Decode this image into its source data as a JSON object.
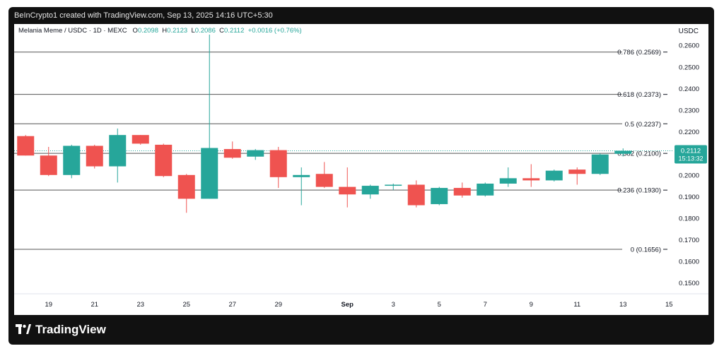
{
  "header": {
    "caption": "BeInCrypto1 created with TradingView.com, Sep 13, 2025 14:16 UTC+5:30"
  },
  "legend": {
    "symbol": "Melania Meme / USDC · 1D · MEXC",
    "open_label": "O",
    "open": "0.2098",
    "high_label": "H",
    "high": "0.2123",
    "low_label": "L",
    "low": "0.2086",
    "close_label": "C",
    "close": "0.2112",
    "change": "+0.0016 (+0.76%)"
  },
  "currency": "USDC",
  "brand": "TradingView",
  "price_tag": {
    "price": "0.2112",
    "countdown": "15:13:32"
  },
  "colors": {
    "up": "#26a69a",
    "down": "#ef5350",
    "line": "#555555",
    "background": "#ffffff",
    "frame": "#111111"
  },
  "chart_data": {
    "type": "candlestick",
    "ylim": [
      0.145,
      0.264
    ],
    "y_ticks": [
      "0.2600",
      "0.2500",
      "0.2400",
      "0.2300",
      "0.2200",
      "0.2100",
      "0.2000",
      "0.1900",
      "0.1800",
      "0.1700",
      "0.1600",
      "0.1500"
    ],
    "x_ticks": [
      {
        "day": 19,
        "label": "19"
      },
      {
        "day": 21,
        "label": "21"
      },
      {
        "day": 23,
        "label": "23"
      },
      {
        "day": 25,
        "label": "25"
      },
      {
        "day": 27,
        "label": "27"
      },
      {
        "day": 29,
        "label": "29"
      },
      {
        "day": 32,
        "label": "Sep"
      },
      {
        "day": 34,
        "label": "3"
      },
      {
        "day": 36,
        "label": "5"
      },
      {
        "day": 38,
        "label": "7"
      },
      {
        "day": 40,
        "label": "9"
      },
      {
        "day": 42,
        "label": "11"
      },
      {
        "day": 44,
        "label": "13"
      },
      {
        "day": 46,
        "label": "15"
      }
    ],
    "fib_levels": [
      {
        "label": "0.786 (0.2569)",
        "value": 0.2569
      },
      {
        "label": "0.618 (0.2373)",
        "value": 0.2373
      },
      {
        "label": "0.5 (0.2237)",
        "value": 0.2237
      },
      {
        "label": "0.382 (0.2100)",
        "value": 0.21
      },
      {
        "label": "0.236 (0.1930)",
        "value": 0.193
      },
      {
        "label": "0 (0.1656)",
        "value": 0.1656
      }
    ],
    "current_price": 0.2112,
    "candles": [
      {
        "d": 18,
        "o": 0.218,
        "h": 0.2185,
        "l": 0.209,
        "c": 0.209
      },
      {
        "d": 19,
        "o": 0.209,
        "h": 0.213,
        "l": 0.1995,
        "c": 0.2
      },
      {
        "d": 20,
        "o": 0.2,
        "h": 0.214,
        "l": 0.1985,
        "c": 0.2135
      },
      {
        "d": 21,
        "o": 0.2135,
        "h": 0.214,
        "l": 0.203,
        "c": 0.204
      },
      {
        "d": 22,
        "o": 0.204,
        "h": 0.2215,
        "l": 0.1965,
        "c": 0.2185
      },
      {
        "d": 23,
        "o": 0.2185,
        "h": 0.2185,
        "l": 0.214,
        "c": 0.2145
      },
      {
        "d": 24,
        "o": 0.214,
        "h": 0.2145,
        "l": 0.199,
        "c": 0.1995
      },
      {
        "d": 25,
        "o": 0.2,
        "h": 0.2005,
        "l": 0.1825,
        "c": 0.189
      },
      {
        "d": 26,
        "o": 0.189,
        "h": 0.265,
        "l": 0.189,
        "c": 0.2125
      },
      {
        "d": 27,
        "o": 0.212,
        "h": 0.2155,
        "l": 0.2075,
        "c": 0.208
      },
      {
        "d": 28,
        "o": 0.2085,
        "h": 0.212,
        "l": 0.207,
        "c": 0.2115
      },
      {
        "d": 29,
        "o": 0.2115,
        "h": 0.213,
        "l": 0.194,
        "c": 0.199
      },
      {
        "d": 30,
        "o": 0.199,
        "h": 0.2035,
        "l": 0.186,
        "c": 0.2
      },
      {
        "d": 31,
        "o": 0.2005,
        "h": 0.206,
        "l": 0.194,
        "c": 0.1945
      },
      {
        "d": 32,
        "o": 0.1945,
        "h": 0.2035,
        "l": 0.185,
        "c": 0.191
      },
      {
        "d": 33,
        "o": 0.191,
        "h": 0.1955,
        "l": 0.189,
        "c": 0.195
      },
      {
        "d": 34,
        "o": 0.195,
        "h": 0.196,
        "l": 0.193,
        "c": 0.1955
      },
      {
        "d": 35,
        "o": 0.1955,
        "h": 0.1975,
        "l": 0.185,
        "c": 0.186
      },
      {
        "d": 36,
        "o": 0.1865,
        "h": 0.1945,
        "l": 0.186,
        "c": 0.194
      },
      {
        "d": 37,
        "o": 0.194,
        "h": 0.1965,
        "l": 0.1895,
        "c": 0.1905
      },
      {
        "d": 38,
        "o": 0.1905,
        "h": 0.1965,
        "l": 0.19,
        "c": 0.196
      },
      {
        "d": 39,
        "o": 0.196,
        "h": 0.2035,
        "l": 0.1945,
        "c": 0.1985
      },
      {
        "d": 40,
        "o": 0.1985,
        "h": 0.205,
        "l": 0.1945,
        "c": 0.1975
      },
      {
        "d": 41,
        "o": 0.1975,
        "h": 0.2025,
        "l": 0.197,
        "c": 0.202
      },
      {
        "d": 42,
        "o": 0.2025,
        "h": 0.2035,
        "l": 0.1955,
        "c": 0.2005
      },
      {
        "d": 43,
        "o": 0.2005,
        "h": 0.21,
        "l": 0.2,
        "c": 0.2095
      },
      {
        "d": 44,
        "o": 0.2098,
        "h": 0.2123,
        "l": 0.2086,
        "c": 0.2112
      }
    ]
  }
}
